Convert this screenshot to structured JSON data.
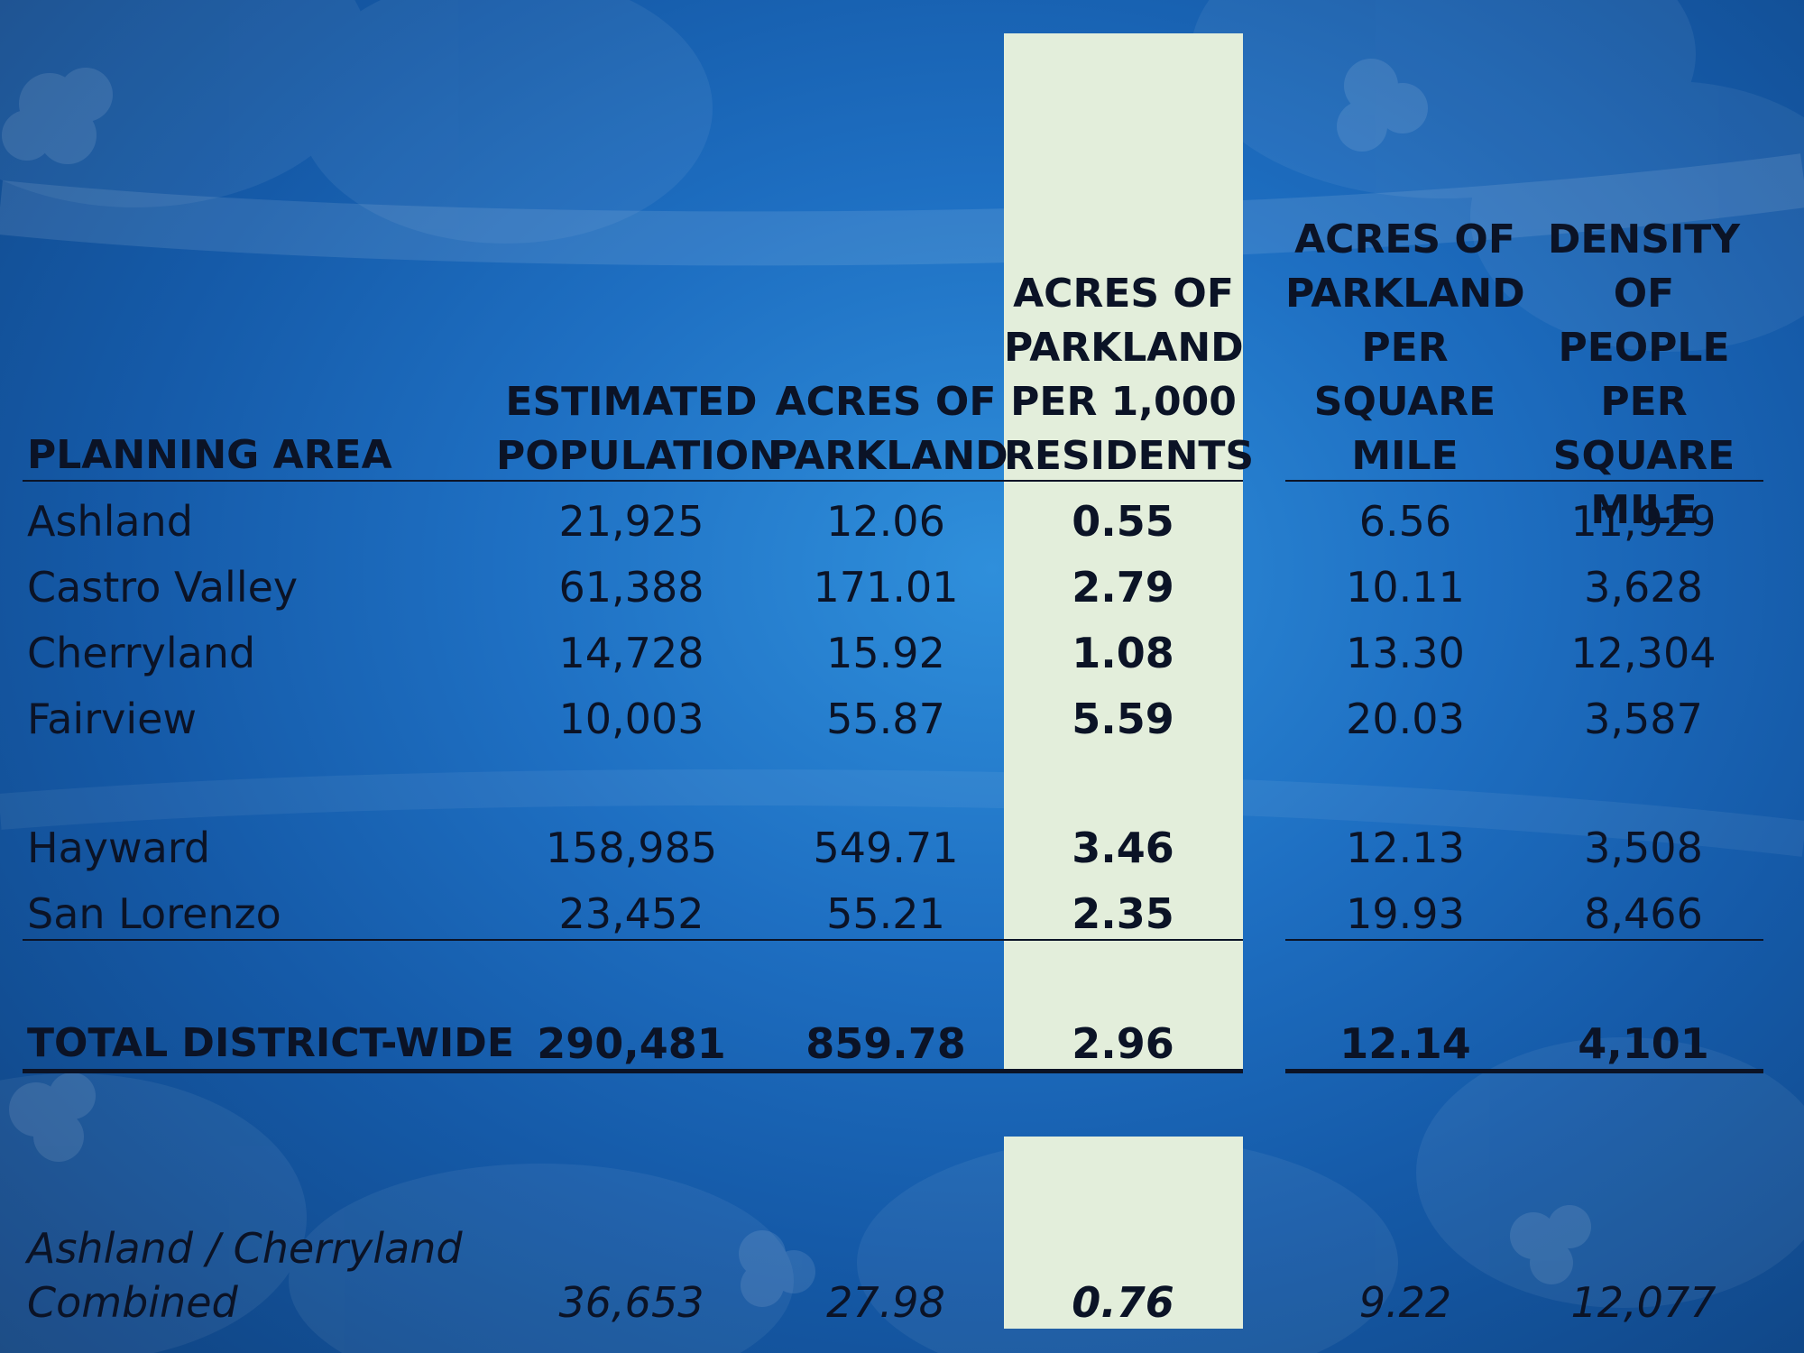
{
  "colors": {
    "background": "#1e6fc2",
    "highlight_band": "#e3eedb",
    "text": "#0b1326"
  },
  "headers": {
    "planning_area": "PLANNING AREA",
    "population": "ESTIMATED\nPOPULATION",
    "acres": "ACRES OF\nPARKLAND",
    "per_1000": "ACRES OF\nPARKLAND\nPER 1,000\nRESIDENTS",
    "acres_sqmi": "ACRES OF\nPARKLAND\nPER\nSQUARE\nMILE",
    "density": "DENSITY OF\nPEOPLE\nPER\nSQUARE\nMILE"
  },
  "rows": [
    {
      "area": "Ashland",
      "population": "21,925",
      "acres": "12.06",
      "per_1000": "0.55",
      "acres_sqmi": "6.56",
      "density": "11,929"
    },
    {
      "area": "Castro Valley",
      "population": "61,388",
      "acres": "171.01",
      "per_1000": "2.79",
      "acres_sqmi": "10.11",
      "density": "3,628"
    },
    {
      "area": "Cherryland",
      "population": "14,728",
      "acres": "15.92",
      "per_1000": "1.08",
      "acres_sqmi": "13.30",
      "density": "12,304"
    },
    {
      "area": "Fairview",
      "population": "10,003",
      "acres": "55.87",
      "per_1000": "5.59",
      "acres_sqmi": "20.03",
      "density": "3,587"
    },
    {
      "area": "Hayward",
      "population": "158,985",
      "acres": "549.71",
      "per_1000": "3.46",
      "acres_sqmi": "12.13",
      "density": "3,508"
    },
    {
      "area": "San Lorenzo",
      "population": "23,452",
      "acres": "55.21",
      "per_1000": "2.35",
      "acres_sqmi": "19.93",
      "density": "8,466"
    }
  ],
  "total": {
    "area": "TOTAL DISTRICT-WIDE",
    "population": "290,481",
    "acres": "859.78",
    "per_1000": "2.96",
    "acres_sqmi": "12.14",
    "density": "4,101"
  },
  "combined": {
    "area_line1": "Ashland / Cherryland",
    "area_line2": "Combined",
    "population": "36,653",
    "acres": "27.98",
    "per_1000": "0.76",
    "acres_sqmi": "9.22",
    "density": "12,077"
  }
}
